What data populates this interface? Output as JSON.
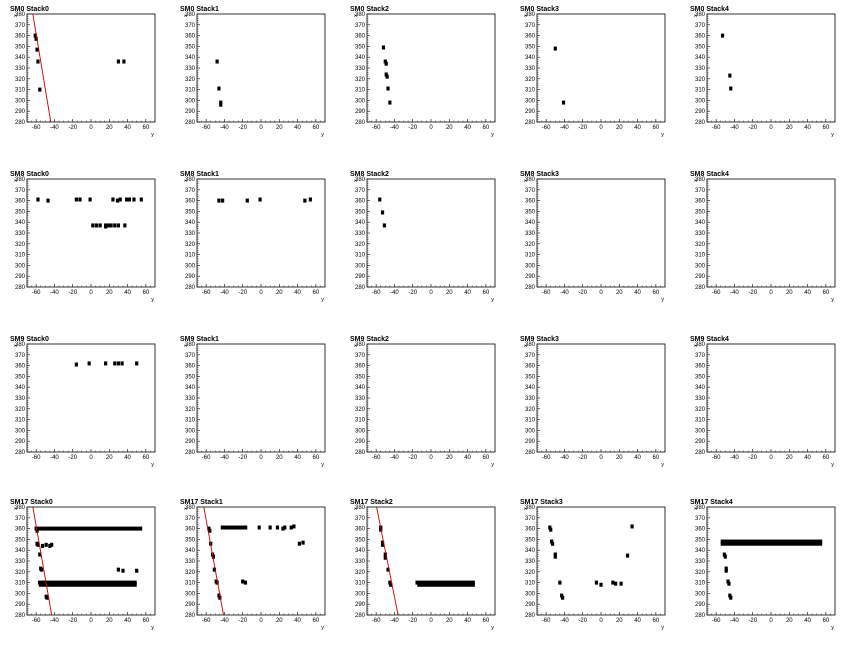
{
  "colors": {
    "marker": "#000000",
    "fit_line": "#cc0000",
    "frame": "#000000",
    "background": "#ffffff"
  },
  "chart_data": [
    {
      "type": "scatter",
      "title": "SM0 Stack0",
      "xlabel": "y",
      "ylabel": "x",
      "xlim": [
        -70,
        70
      ],
      "ylim": [
        280,
        380
      ],
      "xticks": [
        -60,
        -40,
        -20,
        0,
        20,
        40,
        60
      ],
      "yticks": [
        280,
        290,
        300,
        310,
        320,
        330,
        340,
        350,
        360,
        370,
        380
      ],
      "points": [
        [
          -61,
          360
        ],
        [
          -60,
          357
        ],
        [
          -59,
          347
        ],
        [
          -58,
          336
        ],
        [
          -56,
          310
        ],
        [
          30,
          336
        ],
        [
          36,
          336
        ]
      ],
      "fit_line": [
        [
          -64,
          382
        ],
        [
          -44,
          280
        ]
      ]
    },
    {
      "type": "scatter",
      "title": "SM0 Stack1",
      "xlabel": "y",
      "ylabel": "x",
      "xlim": [
        -70,
        70
      ],
      "ylim": [
        280,
        380
      ],
      "xticks": [
        -60,
        -40,
        -20,
        0,
        20,
        40,
        60
      ],
      "yticks": [
        280,
        290,
        300,
        310,
        320,
        330,
        340,
        350,
        360,
        370,
        380
      ],
      "points": [
        [
          -48,
          336
        ],
        [
          -46,
          311
        ],
        [
          -44,
          298
        ],
        [
          -44,
          296
        ]
      ]
    },
    {
      "type": "scatter",
      "title": "SM0 Stack2",
      "xlabel": "y",
      "ylabel": "x",
      "xlim": [
        -70,
        70
      ],
      "ylim": [
        280,
        380
      ],
      "xticks": [
        -60,
        -40,
        -20,
        0,
        20,
        40,
        60
      ],
      "yticks": [
        280,
        290,
        300,
        310,
        320,
        330,
        340,
        350,
        360,
        370,
        380
      ],
      "points": [
        [
          -52,
          349
        ],
        [
          -50,
          336
        ],
        [
          -49,
          334
        ],
        [
          -49,
          324
        ],
        [
          -48,
          322
        ],
        [
          -47,
          311
        ],
        [
          -45,
          298
        ]
      ]
    },
    {
      "type": "scatter",
      "title": "SM0 Stack3",
      "xlabel": "y",
      "ylabel": "x",
      "xlim": [
        -70,
        70
      ],
      "ylim": [
        280,
        380
      ],
      "xticks": [
        -60,
        -40,
        -20,
        0,
        20,
        40,
        60
      ],
      "yticks": [
        280,
        290,
        300,
        310,
        320,
        330,
        340,
        350,
        360,
        370,
        380
      ],
      "points": [
        [
          -50,
          348
        ],
        [
          -41,
          298
        ]
      ]
    },
    {
      "type": "scatter",
      "title": "SM0 Stack4",
      "xlabel": "y",
      "ylabel": "x",
      "xlim": [
        -70,
        70
      ],
      "ylim": [
        280,
        380
      ],
      "xticks": [
        -60,
        -40,
        -20,
        0,
        20,
        40,
        60
      ],
      "yticks": [
        280,
        290,
        300,
        310,
        320,
        330,
        340,
        350,
        360,
        370,
        380
      ],
      "points": [
        [
          -53,
          360
        ],
        [
          -45,
          323
        ],
        [
          -44,
          311
        ]
      ]
    },
    {
      "type": "scatter",
      "title": "SM8 Stack0",
      "xlabel": "y",
      "ylabel": "x",
      "xlim": [
        -70,
        70
      ],
      "ylim": [
        280,
        380
      ],
      "xticks": [
        -60,
        -40,
        -20,
        0,
        20,
        40,
        60
      ],
      "yticks": [
        280,
        290,
        300,
        310,
        320,
        330,
        340,
        350,
        360,
        370,
        380
      ],
      "points": [
        [
          -58,
          361
        ],
        [
          -47,
          360
        ],
        [
          -16,
          361
        ],
        [
          -12,
          361
        ],
        [
          -1,
          361
        ],
        [
          2,
          337
        ],
        [
          6,
          337
        ],
        [
          10,
          337
        ],
        [
          16,
          337
        ],
        [
          16,
          336
        ],
        [
          19,
          337
        ],
        [
          22,
          337
        ],
        [
          24,
          361
        ],
        [
          26,
          337
        ],
        [
          29,
          360
        ],
        [
          30,
          337
        ],
        [
          32,
          361
        ],
        [
          37,
          337
        ],
        [
          39,
          361
        ],
        [
          42,
          361
        ],
        [
          47,
          361
        ],
        [
          55,
          361
        ]
      ]
    },
    {
      "type": "scatter",
      "title": "SM8 Stack1",
      "xlabel": "y",
      "ylabel": "x",
      "xlim": [
        -70,
        70
      ],
      "ylim": [
        280,
        380
      ],
      "xticks": [
        -60,
        -40,
        -20,
        0,
        20,
        40,
        60
      ],
      "yticks": [
        280,
        290,
        300,
        310,
        320,
        330,
        340,
        350,
        360,
        370,
        380
      ],
      "points": [
        [
          -46,
          360
        ],
        [
          -42,
          360
        ],
        [
          -15,
          360
        ],
        [
          -1,
          361
        ],
        [
          48,
          360
        ],
        [
          54,
          361
        ]
      ]
    },
    {
      "type": "scatter",
      "title": "SM8 Stack2",
      "xlabel": "y",
      "ylabel": "x",
      "xlim": [
        -70,
        70
      ],
      "ylim": [
        280,
        380
      ],
      "xticks": [
        -60,
        -40,
        -20,
        0,
        20,
        40,
        60
      ],
      "yticks": [
        280,
        290,
        300,
        310,
        320,
        330,
        340,
        350,
        360,
        370,
        380
      ],
      "points": [
        [
          -56,
          361
        ],
        [
          -53,
          349
        ],
        [
          -51,
          337
        ]
      ]
    },
    {
      "type": "scatter",
      "title": "SM8 Stack3",
      "xlabel": "y",
      "ylabel": "x",
      "xlim": [
        -70,
        70
      ],
      "ylim": [
        280,
        380
      ],
      "xticks": [
        -60,
        -40,
        -20,
        0,
        20,
        40,
        60
      ],
      "yticks": [
        280,
        290,
        300,
        310,
        320,
        330,
        340,
        350,
        360,
        370,
        380
      ],
      "points": []
    },
    {
      "type": "scatter",
      "title": "SM8 Stack4",
      "xlabel": "y",
      "ylabel": "x",
      "xlim": [
        -70,
        70
      ],
      "ylim": [
        280,
        380
      ],
      "xticks": [
        -60,
        -40,
        -20,
        0,
        20,
        40,
        60
      ],
      "yticks": [
        280,
        290,
        300,
        310,
        320,
        330,
        340,
        350,
        360,
        370,
        380
      ],
      "points": []
    },
    {
      "type": "scatter",
      "title": "SM9 Stack0",
      "xlabel": "y",
      "ylabel": "x",
      "xlim": [
        -70,
        70
      ],
      "ylim": [
        280,
        380
      ],
      "xticks": [
        -60,
        -40,
        -20,
        0,
        20,
        40,
        60
      ],
      "yticks": [
        280,
        290,
        300,
        310,
        320,
        330,
        340,
        350,
        360,
        370,
        380
      ],
      "points": [
        [
          -16,
          361
        ],
        [
          -2,
          362
        ],
        [
          16,
          362
        ],
        [
          26,
          362
        ],
        [
          30,
          362
        ],
        [
          34,
          362
        ],
        [
          50,
          362
        ]
      ]
    },
    {
      "type": "scatter",
      "title": "SM9 Stack1",
      "xlabel": "y",
      "ylabel": "x",
      "xlim": [
        -70,
        70
      ],
      "ylim": [
        280,
        380
      ],
      "xticks": [
        -60,
        -40,
        -20,
        0,
        20,
        40,
        60
      ],
      "yticks": [
        280,
        290,
        300,
        310,
        320,
        330,
        340,
        350,
        360,
        370,
        380
      ],
      "points": []
    },
    {
      "type": "scatter",
      "title": "SM9 Stack2",
      "xlabel": "y",
      "ylabel": "x",
      "xlim": [
        -70,
        70
      ],
      "ylim": [
        280,
        380
      ],
      "xticks": [
        -60,
        -40,
        -20,
        0,
        20,
        40,
        60
      ],
      "yticks": [
        280,
        290,
        300,
        310,
        320,
        330,
        340,
        350,
        360,
        370,
        380
      ],
      "points": []
    },
    {
      "type": "scatter",
      "title": "SM9 Stack3",
      "xlabel": "y",
      "ylabel": "x",
      "xlim": [
        -70,
        70
      ],
      "ylim": [
        280,
        380
      ],
      "xticks": [
        -60,
        -40,
        -20,
        0,
        20,
        40,
        60
      ],
      "yticks": [
        280,
        290,
        300,
        310,
        320,
        330,
        340,
        350,
        360,
        370,
        380
      ],
      "points": []
    },
    {
      "type": "scatter",
      "title": "SM9 Stack4",
      "xlabel": "y",
      "ylabel": "x",
      "xlim": [
        -70,
        70
      ],
      "ylim": [
        280,
        380
      ],
      "xticks": [
        -60,
        -40,
        -20,
        0,
        20,
        40,
        60
      ],
      "yticks": [
        280,
        290,
        300,
        310,
        320,
        330,
        340,
        350,
        360,
        370,
        380
      ],
      "points": []
    },
    {
      "type": "scatter",
      "title": "SM17 Stack0",
      "xlabel": "y",
      "ylabel": "x",
      "xlim": [
        -70,
        70
      ],
      "ylim": [
        280,
        380
      ],
      "xticks": [
        -60,
        -40,
        -20,
        0,
        20,
        40,
        60
      ],
      "yticks": [
        280,
        290,
        300,
        310,
        320,
        330,
        340,
        350,
        360,
        370,
        380
      ],
      "points": [
        [
          -60,
          360
        ],
        [
          -59,
          358
        ],
        [
          -59,
          346
        ],
        [
          -58,
          345
        ],
        [
          -56,
          336
        ],
        [
          -55,
          323
        ],
        [
          -54,
          322
        ],
        [
          -52,
          310
        ],
        [
          -49,
          297
        ],
        [
          -48,
          296
        ],
        [
          -53,
          344
        ],
        [
          -49,
          345
        ],
        [
          -45,
          344
        ],
        [
          -43,
          345
        ],
        [
          30,
          322
        ],
        [
          35,
          321
        ],
        [
          50,
          321
        ]
      ],
      "segments": [
        [
          -60,
          56,
          360
        ],
        [
          -58,
          50,
          310
        ],
        [
          -57,
          50,
          308
        ]
      ],
      "fit_line": [
        [
          -64,
          382
        ],
        [
          -43,
          280
        ]
      ]
    },
    {
      "type": "scatter",
      "title": "SM17 Stack1",
      "xlabel": "y",
      "ylabel": "x",
      "xlim": [
        -70,
        70
      ],
      "ylim": [
        280,
        380
      ],
      "xticks": [
        -60,
        -40,
        -20,
        0,
        20,
        40,
        60
      ],
      "yticks": [
        280,
        290,
        300,
        310,
        320,
        330,
        340,
        350,
        360,
        370,
        380
      ],
      "points": [
        [
          -57,
          360
        ],
        [
          -56,
          358
        ],
        [
          -55,
          346
        ],
        [
          -53,
          336
        ],
        [
          -52,
          334
        ],
        [
          -51,
          322
        ],
        [
          -49,
          311
        ],
        [
          -48,
          310
        ],
        [
          -46,
          298
        ],
        [
          -45,
          296
        ],
        [
          -20,
          311
        ],
        [
          -17,
          310
        ],
        [
          -2,
          361
        ],
        [
          10,
          361
        ],
        [
          18,
          361
        ],
        [
          24,
          360
        ],
        [
          26,
          361
        ],
        [
          33,
          361
        ],
        [
          36,
          362
        ],
        [
          42,
          346
        ],
        [
          46,
          347
        ]
      ],
      "segments": [
        [
          -44,
          -15,
          361
        ]
      ],
      "fit_line": [
        [
          -63,
          382
        ],
        [
          -41,
          280
        ]
      ]
    },
    {
      "type": "scatter",
      "title": "SM17 Stack2",
      "xlabel": "y",
      "ylabel": "x",
      "xlim": [
        -70,
        70
      ],
      "ylim": [
        280,
        380
      ],
      "xticks": [
        -60,
        -40,
        -20,
        0,
        20,
        40,
        60
      ],
      "yticks": [
        280,
        290,
        300,
        310,
        320,
        330,
        340,
        350,
        360,
        370,
        380
      ],
      "points": [
        [
          -55,
          361
        ],
        [
          -55,
          359
        ],
        [
          -53,
          347
        ],
        [
          -53,
          345
        ],
        [
          -50,
          336
        ],
        [
          -50,
          333
        ],
        [
          -47,
          322
        ],
        [
          -45,
          310
        ],
        [
          -44,
          308
        ]
      ],
      "segments": [
        [
          -17,
          48,
          310
        ],
        [
          -15,
          48,
          308
        ]
      ],
      "fit_line": [
        [
          -60,
          382
        ],
        [
          -36,
          280
        ]
      ]
    },
    {
      "type": "scatter",
      "title": "SM17 Stack3",
      "xlabel": "y",
      "ylabel": "x",
      "xlim": [
        -70,
        70
      ],
      "ylim": [
        280,
        380
      ],
      "xticks": [
        -60,
        -40,
        -20,
        0,
        20,
        40,
        60
      ],
      "yticks": [
        280,
        290,
        300,
        310,
        320,
        330,
        340,
        350,
        360,
        370,
        380
      ],
      "points": [
        [
          -56,
          361
        ],
        [
          -55,
          359
        ],
        [
          -54,
          348
        ],
        [
          -53,
          346
        ],
        [
          -50,
          336
        ],
        [
          -50,
          334
        ],
        [
          -45,
          310
        ],
        [
          -43,
          298
        ],
        [
          -42,
          296
        ],
        [
          -5,
          310
        ],
        [
          0,
          308
        ],
        [
          13,
          310
        ],
        [
          16,
          309
        ],
        [
          22,
          309
        ],
        [
          29,
          335
        ],
        [
          34,
          362
        ]
      ]
    },
    {
      "type": "scatter",
      "title": "SM17 Stack4",
      "xlabel": "y",
      "ylabel": "x",
      "xlim": [
        -70,
        70
      ],
      "ylim": [
        280,
        380
      ],
      "xticks": [
        -60,
        -40,
        -20,
        0,
        20,
        40,
        60
      ],
      "yticks": [
        280,
        290,
        300,
        310,
        320,
        330,
        340,
        350,
        360,
        370,
        380
      ],
      "points": [
        [
          -51,
          336
        ],
        [
          -50,
          334
        ],
        [
          -49,
          323
        ],
        [
          -49,
          321
        ],
        [
          -47,
          311
        ],
        [
          -46,
          309
        ],
        [
          -45,
          298
        ],
        [
          -44,
          296
        ]
      ],
      "segments": [
        [
          -55,
          56,
          348
        ],
        [
          -55,
          56,
          346
        ]
      ]
    }
  ]
}
